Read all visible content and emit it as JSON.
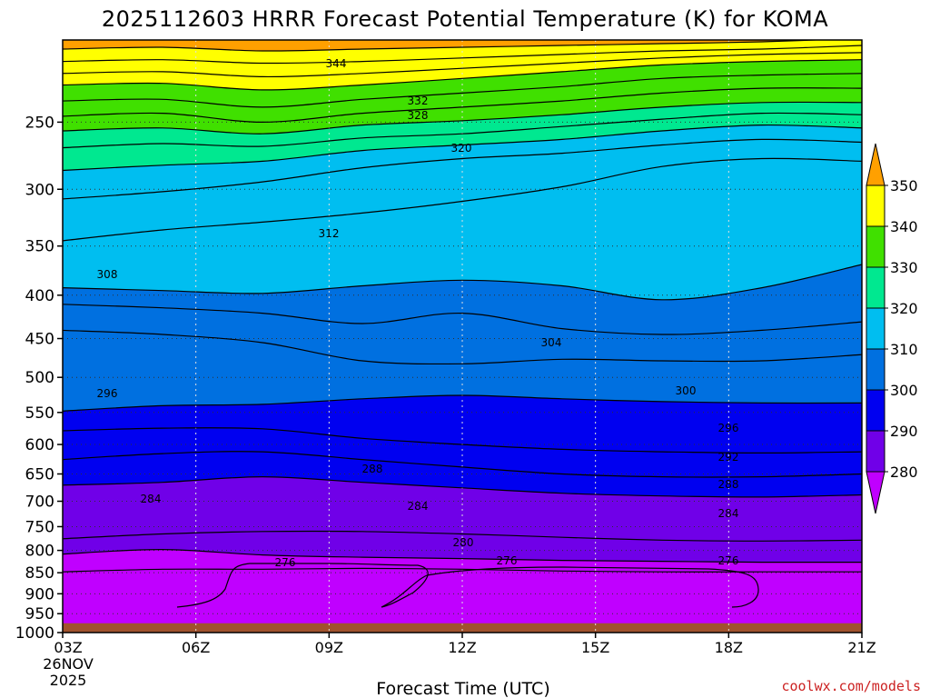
{
  "chart_data": {
    "type": "contour",
    "title": "2025112603 HRRR Forecast Potential Temperature (K) for KOMA",
    "xlabel": "Forecast Time (UTC)",
    "ylabel": "",
    "x_ticks": [
      "03Z",
      "06Z",
      "09Z",
      "12Z",
      "15Z",
      "18Z",
      "21Z"
    ],
    "x_start_date_lines": [
      "26NOV",
      "2025"
    ],
    "x_hours": [
      3,
      6,
      9,
      12,
      15,
      18,
      21
    ],
    "y_ticks_hpa": [
      250,
      300,
      350,
      400,
      450,
      500,
      550,
      600,
      650,
      700,
      750,
      800,
      850,
      900,
      950,
      1000
    ],
    "y_range_hpa": [
      200,
      1000
    ],
    "y_scale": "log-pressure",
    "contour_interval_k": 2,
    "fill_levels_k": [
      280,
      290,
      300,
      310,
      320,
      330,
      340,
      350
    ],
    "fill_colors": [
      "#c000ff",
      "#7000e8",
      "#0000f0",
      "#0070e0",
      "#00bef0",
      "#00e890",
      "#40e000",
      "#ffff00",
      "#ffa000"
    ],
    "colorbar_labels": [
      "280",
      "290",
      "300",
      "310",
      "320",
      "330",
      "340",
      "350"
    ],
    "ground_color": "#a0522d",
    "grid": "dotted",
    "contour_labels": [
      "344",
      "332",
      "328",
      "320",
      "312",
      "308",
      "304",
      "300",
      "296",
      "296",
      "292",
      "288",
      "288",
      "284",
      "284",
      "284",
      "280",
      "276",
      "276",
      "276"
    ],
    "isentropes": [
      {
        "theta": 346,
        "hpa": [
          205,
          204,
          206,
          205,
          204,
          203,
          202,
          201,
          199
        ]
      },
      {
        "theta": 344,
        "hpa": [
          212,
          211,
          213,
          212,
          210,
          208,
          206,
          205,
          203
        ]
      },
      {
        "theta": 342,
        "hpa": [
          219,
          218,
          221,
          219,
          216,
          213,
          210,
          208,
          207
        ]
      },
      {
        "theta": 340,
        "hpa": [
          226,
          225,
          229,
          226,
          222,
          218,
          214,
          212,
          211
        ]
      },
      {
        "theta": 336,
        "hpa": [
          236,
          235,
          240,
          235,
          231,
          227,
          222,
          220,
          219
        ]
      },
      {
        "theta": 332,
        "hpa": [
          246,
          244,
          250,
          244,
          240,
          236,
          231,
          228,
          228
        ]
      },
      {
        "theta": 328,
        "hpa": [
          256,
          254,
          258,
          252,
          249,
          245,
          240,
          237,
          237
        ]
      },
      {
        "theta": 324,
        "hpa": [
          268,
          265,
          267,
          261,
          258,
          253,
          248,
          244,
          245
        ]
      },
      {
        "theta": 320,
        "hpa": [
          285,
          281,
          278,
          270,
          266,
          262,
          256,
          252,
          254
        ]
      },
      {
        "theta": 316,
        "hpa": [
          308,
          302,
          294,
          283,
          276,
          272,
          266,
          262,
          264
        ]
      },
      {
        "theta": 312,
        "hpa": [
          345,
          335,
          328,
          320,
          310,
          298,
          282,
          276,
          278
        ]
      },
      {
        "theta": 308,
        "hpa": [
          392,
          395,
          398,
          390,
          384,
          390,
          405,
          392,
          368
        ]
      },
      {
        "theta": 306,
        "hpa": [
          410,
          414,
          420,
          432,
          420,
          438,
          445,
          440,
          430
        ]
      },
      {
        "theta": 304,
        "hpa": [
          440,
          445,
          455,
          478,
          482,
          476,
          478,
          478,
          470
        ]
      },
      {
        "theta": 300,
        "hpa": [
          548,
          540,
          538,
          530,
          525,
          530,
          534,
          536,
          536
        ]
      },
      {
        "theta": 296,
        "hpa": [
          578,
          574,
          575,
          590,
          600,
          608,
          612,
          614,
          612
        ]
      },
      {
        "theta": 292,
        "hpa": [
          625,
          615,
          612,
          625,
          638,
          650,
          655,
          655,
          650
        ]
      },
      {
        "theta": 288,
        "hpa": [
          670,
          665,
          655,
          665,
          675,
          685,
          690,
          692,
          688
        ]
      },
      {
        "theta": 284,
        "hpa": [
          775,
          765,
          760,
          760,
          765,
          772,
          778,
          780,
          778
        ]
      },
      {
        "theta": 280,
        "hpa": [
          808,
          798,
          810,
          815,
          818,
          822,
          824,
          826,
          826
        ]
      },
      {
        "theta": 278,
        "hpa": [
          848,
          842,
          842,
          840,
          842,
          846,
          848,
          848,
          848
        ]
      }
    ]
  }
}
